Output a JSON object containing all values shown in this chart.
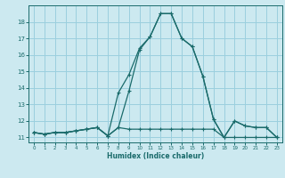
{
  "xlabel": "Humidex (Indice chaleur)",
  "bg_color": "#cce9f0",
  "grid_color": "#9bcfde",
  "line_color": "#1a6b6b",
  "xlim": [
    -0.5,
    23.5
  ],
  "ylim": [
    10.7,
    19.0
  ],
  "yticks": [
    11,
    12,
    13,
    14,
    15,
    16,
    17,
    18
  ],
  "xticks": [
    0,
    1,
    2,
    3,
    4,
    5,
    6,
    7,
    8,
    9,
    10,
    11,
    12,
    13,
    14,
    15,
    16,
    17,
    18,
    19,
    20,
    21,
    22,
    23
  ],
  "series": [
    [
      11.3,
      11.2,
      11.3,
      11.3,
      11.4,
      11.5,
      11.6,
      11.1,
      11.6,
      11.5,
      11.5,
      11.5,
      11.5,
      11.5,
      11.5,
      11.5,
      11.5,
      11.5,
      11.0,
      11.0,
      11.0,
      11.0,
      11.0,
      11.0
    ],
    [
      11.3,
      11.2,
      11.3,
      11.3,
      11.4,
      11.5,
      11.6,
      11.1,
      11.6,
      13.8,
      16.3,
      17.1,
      18.5,
      18.5,
      17.0,
      16.5,
      14.7,
      12.1,
      11.0,
      12.0,
      11.7,
      11.6,
      11.6,
      11.0
    ],
    [
      11.3,
      11.2,
      11.3,
      11.3,
      11.4,
      11.5,
      11.6,
      11.1,
      13.7,
      14.8,
      16.4,
      17.1,
      18.5,
      18.5,
      17.0,
      16.5,
      14.7,
      12.1,
      11.0,
      12.0,
      11.7,
      11.6,
      11.6,
      11.0
    ]
  ]
}
